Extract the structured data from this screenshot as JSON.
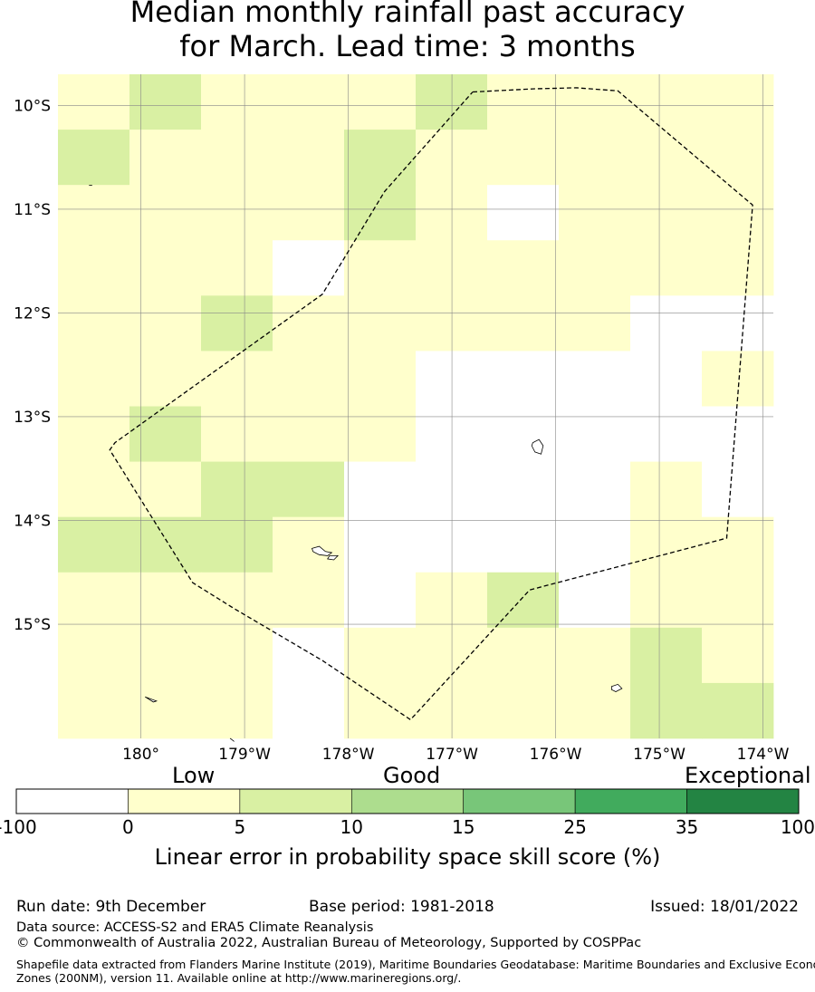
{
  "title_line1": "Median monthly rainfall past accuracy",
  "title_line2": "for March. Lead time: 3 months",
  "map": {
    "lon_range": [
      179.2,
      186.1
    ],
    "lat_range": [
      -16.1,
      -9.7
    ],
    "lon_ticks": [
      {
        "value": 180,
        "label": "180°"
      },
      {
        "value": 181,
        "label": "179°W"
      },
      {
        "value": 182,
        "label": "178°W"
      },
      {
        "value": 183,
        "label": "177°W"
      },
      {
        "value": 184,
        "label": "176°W"
      },
      {
        "value": 185,
        "label": "175°W"
      },
      {
        "value": 186,
        "label": "174°W"
      }
    ],
    "lat_ticks": [
      {
        "value": -10,
        "label": "10°S"
      },
      {
        "value": -11,
        "label": "11°S"
      },
      {
        "value": -12,
        "label": "12°S"
      },
      {
        "value": -13,
        "label": "13°S"
      },
      {
        "value": -14,
        "label": "14°S"
      },
      {
        "value": -15,
        "label": "15°S"
      }
    ],
    "grid_cols": 10,
    "grid_rows": 12,
    "category_colors": {
      "w": "#ffffff",
      "y": "#ffffcc",
      "g": "#d9f0a3"
    },
    "skill_grid": [
      "ygyyygyyyy",
      "gyyygyyyyy",
      "yyyygywyyy",
      "yyywyyyyyy",
      "yygyyyyyww",
      "yyyyywwwwy",
      "ygyyywwwww",
      "yyggwwwwyw",
      "gggywwwwyy",
      "yyyywygwyy",
      "yyywyyyygy",
      "yyywyyyygg"
    ],
    "eez_boundary": [
      [
        183.2,
        -9.87
      ],
      [
        183.8,
        -9.84
      ],
      [
        184.2,
        -9.83
      ],
      [
        184.6,
        -9.86
      ],
      [
        185.9,
        -10.96
      ],
      [
        185.65,
        -14.17
      ],
      [
        183.75,
        -14.67
      ],
      [
        182.6,
        -15.92
      ],
      [
        181.75,
        -15.35
      ],
      [
        180.9,
        -14.85
      ],
      [
        180.5,
        -14.6
      ],
      [
        179.7,
        -13.32
      ],
      [
        179.75,
        -13.25
      ],
      [
        181.75,
        -11.82
      ],
      [
        182.35,
        -10.83
      ],
      [
        183.2,
        -9.87
      ]
    ],
    "islands": [
      [
        [
          183.78,
          -13.25
        ],
        [
          183.84,
          -13.22
        ],
        [
          183.88,
          -13.28
        ],
        [
          183.86,
          -13.36
        ],
        [
          183.8,
          -13.34
        ],
        [
          183.77,
          -13.28
        ]
      ],
      [
        [
          181.65,
          -14.27
        ],
        [
          181.72,
          -14.25
        ],
        [
          181.78,
          -14.3
        ],
        [
          181.84,
          -14.31
        ],
        [
          181.8,
          -14.34
        ],
        [
          181.72,
          -14.33
        ],
        [
          181.66,
          -14.3
        ]
      ],
      [
        [
          181.82,
          -14.34
        ],
        [
          181.9,
          -14.34
        ],
        [
          181.86,
          -14.38
        ],
        [
          181.8,
          -14.37
        ]
      ],
      [
        [
          184.54,
          -15.6
        ],
        [
          184.6,
          -15.58
        ],
        [
          184.64,
          -15.62
        ],
        [
          184.58,
          -15.65
        ],
        [
          184.54,
          -15.63
        ]
      ],
      [
        [
          180.04,
          -15.7
        ],
        [
          180.15,
          -15.74
        ],
        [
          180.12,
          -15.75
        ]
      ],
      [
        [
          179.5,
          -10.77
        ],
        [
          179.53,
          -10.77
        ]
      ],
      [
        [
          180.86,
          -16.1
        ],
        [
          180.9,
          -16.13
        ]
      ]
    ]
  },
  "colorbar": {
    "labels": {
      "low": "Low",
      "good": "Good",
      "exceptional": "Exceptional"
    },
    "bins": [
      {
        "from": "-100",
        "to": "0",
        "color": "#ffffff"
      },
      {
        "from": "0",
        "to": "5",
        "color": "#ffffcc"
      },
      {
        "from": "5",
        "to": "10",
        "color": "#d9f0a3"
      },
      {
        "from": "10",
        "to": "15",
        "color": "#addd8e"
      },
      {
        "from": "15",
        "to": "25",
        "color": "#78c679"
      },
      {
        "from": "25",
        "to": "35",
        "color": "#41ab5d"
      },
      {
        "from": "35",
        "to": "100",
        "color": "#238443"
      }
    ],
    "tick_labels": [
      "-100",
      "0",
      "5",
      "10",
      "15",
      "25",
      "35",
      "100"
    ],
    "title": "Linear error in probability space skill score (%)"
  },
  "footer": {
    "run_date": "Run date: 9th December",
    "base_period": "Base period: 1981-2018",
    "issued": "Issued: 18/01/2022",
    "data_source": "Data source: ACCESS-S2 and ERA5 Climate Reanalysis",
    "copyright": "© Commonwealth of Australia 2022, Australian Bureau of Meteorology, Supported by COSPPac",
    "shapefile_line1": "Shapefile data extracted from Flanders Marine Institute (2019), Maritime Boundaries Geodatabase: Maritime Boundaries and Exclusive Economic",
    "shapefile_line2": "Zones (200NM), version 11. Available online at http://www.marineregions.org/."
  }
}
